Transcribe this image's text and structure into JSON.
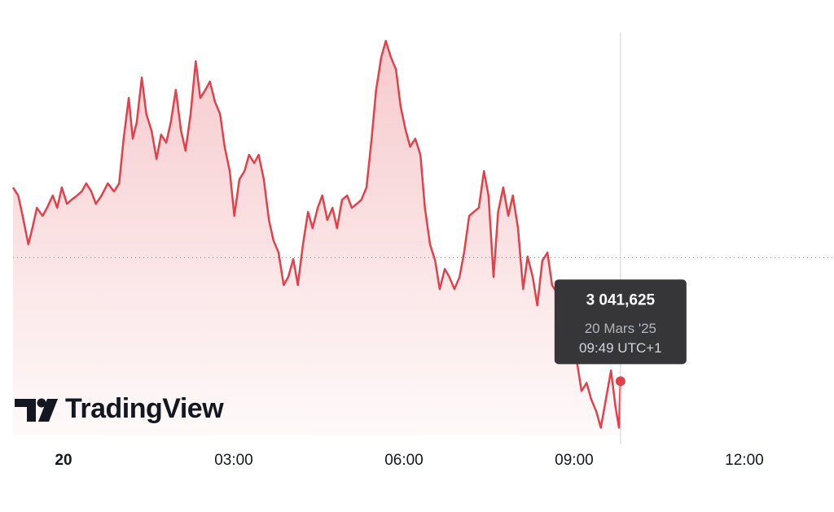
{
  "chart_data": {
    "type": "area",
    "color": "#e0424c",
    "watermark": "TradingView",
    "xlim": [
      -0.89,
      13.58
    ],
    "ylim": [
      3039.2,
      3057.2
    ],
    "xticks": [
      {
        "value": 0,
        "label": "20"
      },
      {
        "value": 3,
        "label": "03:00"
      },
      {
        "value": 6,
        "label": "06:00"
      },
      {
        "value": 9,
        "label": "09:00"
      },
      {
        "value": 12,
        "label": "12:00"
      }
    ],
    "reference_line": 3047.15,
    "x": [
      -0.89,
      -0.8,
      -0.72,
      -0.62,
      -0.55,
      -0.47,
      -0.37,
      -0.29,
      -0.19,
      -0.11,
      -0.03,
      0.06,
      0.14,
      0.24,
      0.32,
      0.4,
      0.49,
      0.57,
      0.67,
      0.78,
      0.89,
      0.98,
      1.06,
      1.15,
      1.22,
      1.29,
      1.38,
      1.46,
      1.55,
      1.64,
      1.72,
      1.81,
      1.89,
      1.98,
      2.07,
      2.15,
      2.24,
      2.33,
      2.41,
      2.5,
      2.58,
      2.67,
      2.76,
      2.84,
      2.93,
      3.01,
      3.1,
      3.19,
      3.27,
      3.36,
      3.44,
      3.53,
      3.62,
      3.7,
      3.79,
      3.88,
      3.96,
      4.05,
      4.13,
      4.22,
      4.31,
      4.39,
      4.48,
      4.56,
      4.65,
      4.74,
      4.82,
      4.91,
      5.0,
      5.08,
      5.17,
      5.25,
      5.34,
      5.43,
      5.51,
      5.6,
      5.68,
      5.77,
      5.86,
      5.94,
      6.03,
      6.11,
      6.2,
      6.29,
      6.37,
      6.46,
      6.55,
      6.63,
      6.72,
      6.8,
      6.89,
      6.98,
      7.06,
      7.15,
      7.23,
      7.32,
      7.41,
      7.49,
      7.58,
      7.66,
      7.75,
      7.84,
      7.92,
      8.01,
      8.1,
      8.18,
      8.27,
      8.35,
      8.44,
      8.53,
      8.61,
      8.7,
      8.78,
      8.87,
      8.96,
      9.04,
      9.13,
      9.22,
      9.3,
      9.39,
      9.47,
      9.56,
      9.65,
      9.73,
      9.79,
      9.8167
    ],
    "values": [
      3050.28,
      3049.92,
      3049.01,
      3047.74,
      3048.46,
      3049.37,
      3049.01,
      3049.37,
      3049.92,
      3049.37,
      3050.28,
      3049.55,
      3049.73,
      3049.92,
      3050.1,
      3050.46,
      3050.1,
      3049.55,
      3049.92,
      3050.46,
      3050.1,
      3050.46,
      3052.46,
      3054.28,
      3052.46,
      3053.19,
      3055.19,
      3053.55,
      3052.83,
      3051.55,
      3052.64,
      3052.28,
      3053.19,
      3054.64,
      3052.83,
      3051.92,
      3053.55,
      3055.92,
      3054.28,
      3054.64,
      3055.01,
      3054.1,
      3053.55,
      3052.1,
      3051.01,
      3049.01,
      3050.64,
      3051.01,
      3051.74,
      3051.37,
      3051.74,
      3050.64,
      3048.83,
      3047.92,
      3047.37,
      3045.92,
      3046.28,
      3047.08,
      3045.92,
      3047.74,
      3049.19,
      3048.46,
      3049.37,
      3049.92,
      3048.83,
      3049.37,
      3048.46,
      3049.73,
      3049.92,
      3049.37,
      3049.55,
      3049.73,
      3050.28,
      3052.46,
      3054.64,
      3056.1,
      3056.83,
      3056.1,
      3055.55,
      3053.92,
      3052.83,
      3052.1,
      3052.46,
      3051.74,
      3049.37,
      3047.74,
      3047.01,
      3045.74,
      3046.64,
      3046.28,
      3045.74,
      3046.28,
      3047.37,
      3049.01,
      3049.19,
      3049.37,
      3051.01,
      3049.92,
      3046.28,
      3049.19,
      3050.28,
      3049.01,
      3049.92,
      3048.46,
      3045.74,
      3047.19,
      3046.28,
      3045.01,
      3047.01,
      3047.37,
      3045.92,
      3045.55,
      3045.37,
      3044.46,
      3043.37,
      3042.64,
      3041.19,
      3041.55,
      3040.83,
      3040.28,
      3039.55,
      3040.83,
      3042.1,
      3040.46,
      3039.55,
      3041.625
    ],
    "tooltip": {
      "x": 9.8167,
      "value": 3041.625,
      "value_label": "3 041,625",
      "date": "20 Mars '25",
      "time": "09:49 UTC+1"
    }
  }
}
